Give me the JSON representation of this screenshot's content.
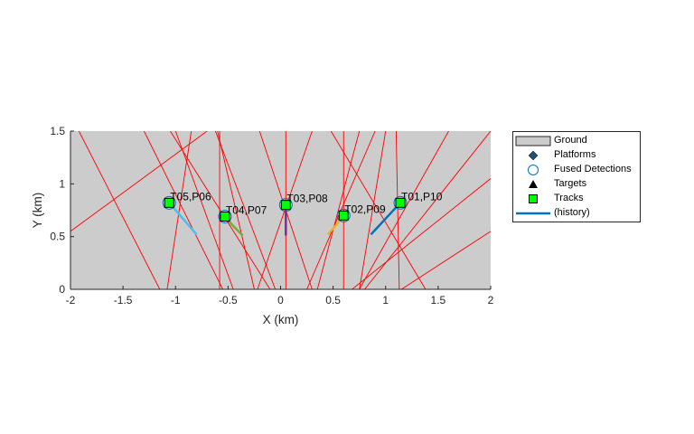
{
  "chart_data": {
    "type": "scatter",
    "xlabel": "X (km)",
    "ylabel": "Y (km)",
    "xlim": [
      -2,
      2
    ],
    "ylim": [
      0,
      1.5
    ],
    "xticks": [
      -2,
      -1.5,
      -1,
      -0.5,
      0,
      0.5,
      1,
      1.5,
      2
    ],
    "yticks": [
      0,
      0.5,
      1,
      1.5
    ],
    "xtick_labels": [
      "-2",
      "-1.5",
      "-1",
      "-0.5",
      "0",
      "0.5",
      "1",
      "1.5",
      "2"
    ],
    "ytick_labels": [
      "0",
      "0.5",
      "1",
      "1.5"
    ],
    "grid": false,
    "legend_position": "outside-right",
    "ground_color": "#cccccc",
    "beam_color": "#ff0000",
    "legend": [
      {
        "label": "Ground",
        "symbol": "patch"
      },
      {
        "label": "Platforms",
        "symbol": "diamond"
      },
      {
        "label": "Fused Detections",
        "symbol": "circle"
      },
      {
        "label": "Targets",
        "symbol": "triangle"
      },
      {
        "label": "Tracks",
        "symbol": "square"
      },
      {
        "label": "(history)",
        "symbol": "line"
      }
    ],
    "tracks": [
      {
        "label": "T01,P10",
        "x": 1.14,
        "y": 0.82,
        "color": "#0072bd",
        "history": [
          [
            0.86,
            0.52
          ],
          [
            1.0,
            0.67
          ],
          [
            1.14,
            0.82
          ]
        ]
      },
      {
        "label": "T02,P09",
        "x": 0.6,
        "y": 0.7,
        "color": "#edb120",
        "history": [
          [
            0.45,
            0.52
          ],
          [
            0.53,
            0.61
          ],
          [
            0.6,
            0.7
          ]
        ]
      },
      {
        "label": "T03,P08",
        "x": 0.05,
        "y": 0.8,
        "color": "#7e2f8e",
        "history": [
          [
            0.05,
            0.51
          ],
          [
            0.05,
            0.65
          ],
          [
            0.05,
            0.8
          ]
        ]
      },
      {
        "label": "T04,P07",
        "x": -0.53,
        "y": 0.69,
        "color": "#77ac30",
        "history": [
          [
            -0.36,
            0.51
          ],
          [
            -0.45,
            0.6
          ],
          [
            -0.53,
            0.69
          ]
        ]
      },
      {
        "label": "T05,P06",
        "x": -1.06,
        "y": 0.82,
        "color": "#4dbeee",
        "history": [
          [
            -0.8,
            0.52
          ],
          [
            -0.93,
            0.67
          ],
          [
            -1.06,
            0.82
          ]
        ]
      }
    ],
    "beams": [
      [
        [
          -2.0,
          0.55
        ],
        [
          -0.7,
          1.5
        ]
      ],
      [
        [
          -1.15,
          0.0
        ],
        [
          -1.92,
          1.5
        ]
      ],
      [
        [
          -1.3,
          1.5
        ],
        [
          -0.55,
          0.0
        ]
      ],
      [
        [
          -1.0,
          1.5
        ],
        [
          -0.45,
          0.0
        ]
      ],
      [
        [
          -1.08,
          0.0
        ],
        [
          -0.85,
          1.5
        ]
      ],
      [
        [
          -0.58,
          1.5
        ],
        [
          -0.58,
          0.0
        ]
      ],
      [
        [
          -0.6,
          1.5
        ],
        [
          -0.25,
          0.0
        ]
      ],
      [
        [
          -0.1,
          0.0
        ],
        [
          -1.05,
          1.5
        ]
      ],
      [
        [
          -0.05,
          0.0
        ],
        [
          -0.62,
          1.5
        ]
      ],
      [
        [
          -0.2,
          1.5
        ],
        [
          0.3,
          0.0
        ]
      ],
      [
        [
          0.05,
          1.5
        ],
        [
          0.05,
          0.0
        ]
      ],
      [
        [
          0.3,
          1.5
        ],
        [
          -0.22,
          0.0
        ]
      ],
      [
        [
          0.9,
          1.5
        ],
        [
          0.25,
          0.0
        ]
      ],
      [
        [
          0.6,
          1.5
        ],
        [
          0.6,
          0.0
        ]
      ],
      [
        [
          0.75,
          1.5
        ],
        [
          0.35,
          0.0
        ]
      ],
      [
        [
          1.0,
          1.5
        ],
        [
          0.75,
          0.0
        ]
      ],
      [
        [
          1.13,
          0.0
        ],
        [
          1.1,
          1.5
        ]
      ],
      [
        [
          1.6,
          1.5
        ],
        [
          0.75,
          0.0
        ]
      ],
      [
        [
          1.38,
          0.0
        ],
        [
          0.48,
          1.5
        ]
      ],
      [
        [
          2.0,
          1.5
        ],
        [
          0.8,
          0.0
        ]
      ],
      [
        [
          2.0,
          1.05
        ],
        [
          0.68,
          0.0
        ]
      ],
      [
        [
          2.0,
          0.55
        ],
        [
          1.15,
          0.0
        ]
      ]
    ]
  }
}
